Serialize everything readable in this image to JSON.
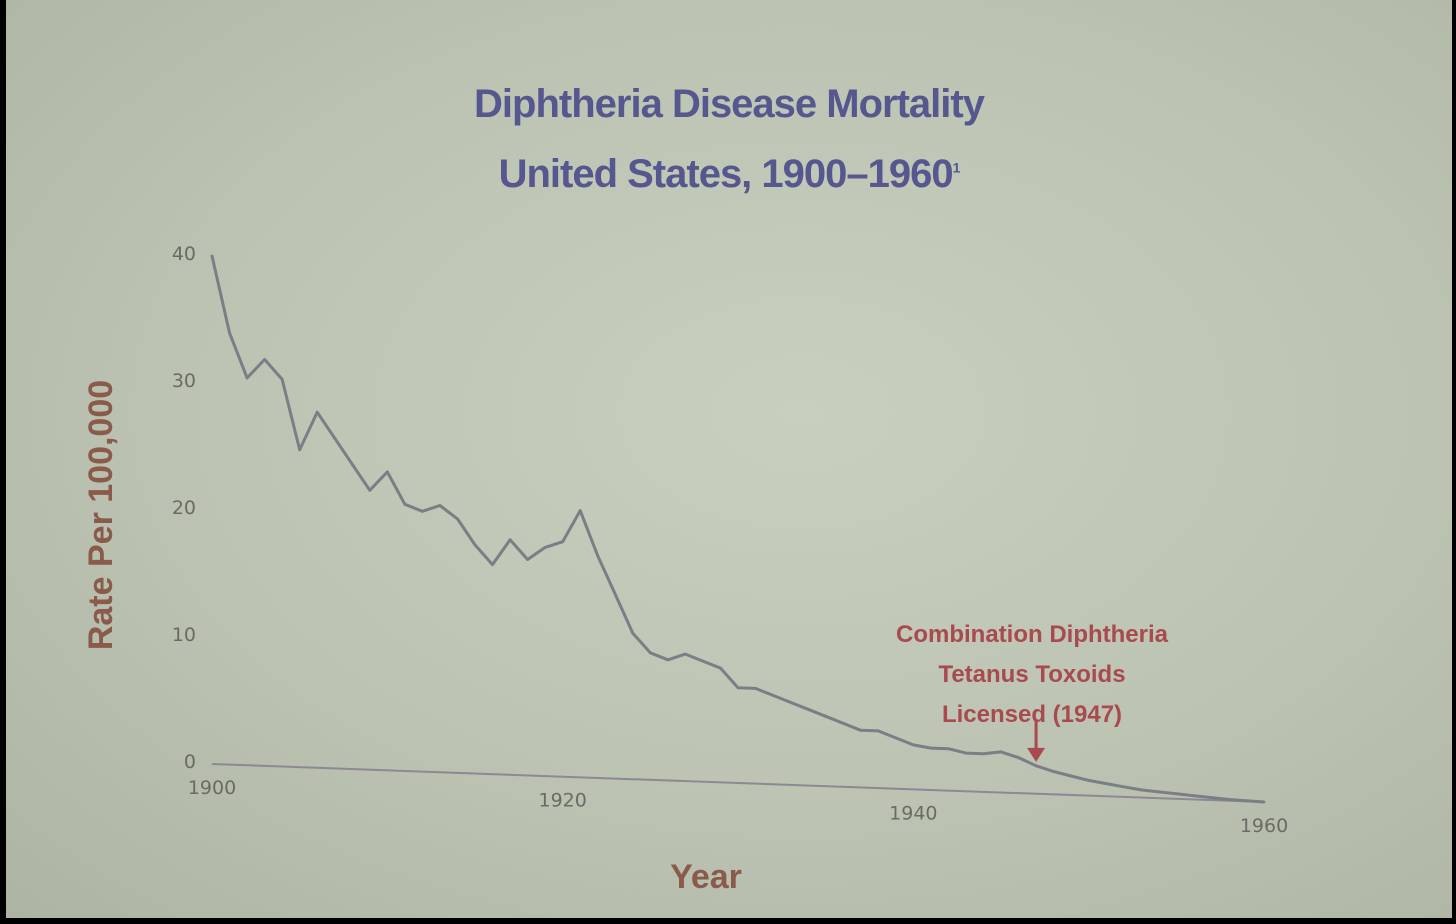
{
  "chart_data": {
    "type": "line",
    "title": "Diphtheria Disease Mortality",
    "subtitle": "United States, 1900–1960",
    "title_footnote": "1",
    "xlabel": "Year",
    "ylabel": "Rate Per 100,000",
    "xlim": [
      1900,
      1960
    ],
    "ylim": [
      0,
      40
    ],
    "x_ticks": [
      "1900",
      "1920",
      "1940",
      "1960"
    ],
    "y_ticks": [
      "40",
      "30",
      "20",
      "10",
      "0"
    ],
    "grid": false,
    "x": [
      1900,
      1901,
      1902,
      1903,
      1904,
      1905,
      1906,
      1907,
      1908,
      1909,
      1910,
      1911,
      1912,
      1913,
      1914,
      1915,
      1916,
      1917,
      1918,
      1919,
      1920,
      1921,
      1922,
      1923,
      1924,
      1925,
      1926,
      1927,
      1928,
      1929,
      1930,
      1931,
      1932,
      1933,
      1934,
      1935,
      1936,
      1937,
      1938,
      1939,
      1940,
      1941,
      1942,
      1943,
      1944,
      1945,
      1946,
      1947,
      1948,
      1949,
      1950,
      1951,
      1952,
      1953,
      1954,
      1955,
      1956,
      1957,
      1958,
      1959,
      1960
    ],
    "series": [
      {
        "values": [
          40.0,
          34.0,
          30.5,
          32.0,
          30.5,
          25.0,
          28.0,
          26.0,
          24.0,
          22.0,
          23.5,
          21.0,
          20.5,
          21.0,
          20.0,
          18.0,
          16.5,
          18.5,
          17.0,
          18.0,
          18.5,
          21.0,
          17.5,
          14.5,
          11.5,
          10.0,
          9.5,
          10.0,
          9.5,
          9.0,
          7.5,
          7.5,
          7.0,
          6.5,
          6.0,
          5.5,
          5.0,
          4.5,
          4.5,
          4.0,
          3.5,
          3.3,
          3.3,
          3.0,
          3.0,
          3.2,
          2.8,
          2.2,
          1.8,
          1.5,
          1.2,
          1.0,
          0.8,
          0.6,
          0.5,
          0.4,
          0.3,
          0.2,
          0.1,
          0.05,
          0.0
        ]
      }
    ],
    "annotation": {
      "lines": [
        "Combination Diphtheria",
        "Tetanus Toxoids",
        "Licensed (1947)"
      ],
      "year": 1947
    }
  },
  "colors": {
    "title": "#55578e",
    "line": "#7a7f86",
    "axis": "#8e8894",
    "axis_title": "#8a5a4a",
    "annotation": "#a84a4e"
  }
}
